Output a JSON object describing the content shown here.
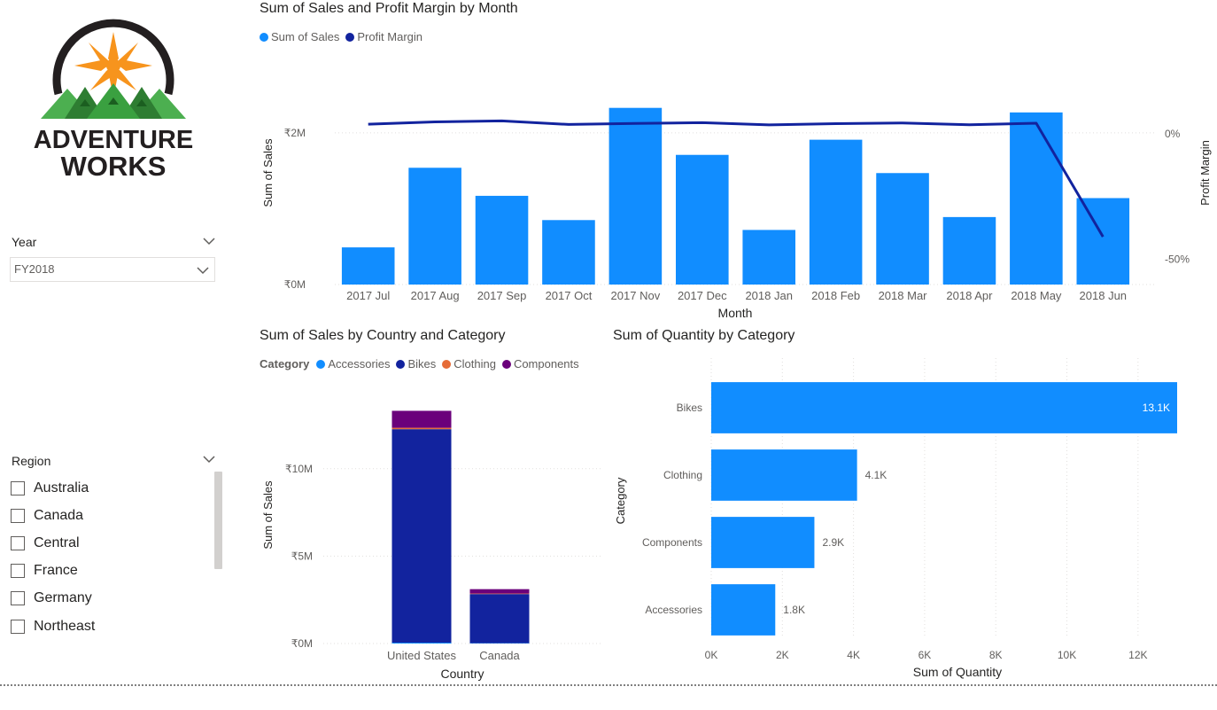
{
  "logo": {
    "line1": "ADVENTURE",
    "line2": "WORKS",
    "brand_colors": {
      "sun": "#f7941d",
      "mountain_dark": "#2e7d32",
      "mountain_light": "#4caf50",
      "arc": "#231f20"
    }
  },
  "year_slicer": {
    "title": "Year",
    "selected": "FY2018",
    "icon": "chevron-down-icon"
  },
  "region_slicer": {
    "title": "Region",
    "icon": "chevron-down-icon",
    "items": [
      {
        "label": "Australia",
        "checked": false
      },
      {
        "label": "Canada",
        "checked": false
      },
      {
        "label": "Central",
        "checked": false
      },
      {
        "label": "France",
        "checked": false
      },
      {
        "label": "Germany",
        "checked": false
      },
      {
        "label": "Northeast",
        "checked": false
      }
    ]
  },
  "colors": {
    "sales": "#118dff",
    "margin": "#12239e",
    "bikes": "#12239e",
    "accessories": "#118dff",
    "clothing": "#e66c37",
    "components": "#6b007b",
    "grid": "#e1dfdd"
  },
  "chart_data": [
    {
      "type": "bar",
      "title": "Sum of Sales and Profit Margin by Month",
      "xlabel": "Month",
      "ylabel": "Sum of Sales",
      "y2label": "Profit Margin",
      "legend": [
        "Sum of Sales",
        "Profit Margin"
      ],
      "categories": [
        "2017 Jul",
        "2017 Aug",
        "2017 Sep",
        "2017 Oct",
        "2017 Nov",
        "2017 Dec",
        "2018 Jan",
        "2018 Feb",
        "2018 Mar",
        "2018 Apr",
        "2018 May",
        "2018 Jun"
      ],
      "series": [
        {
          "name": "Sum of Sales",
          "type": "bar",
          "values": [
            0.49,
            1.54,
            1.17,
            0.85,
            2.33,
            1.71,
            0.72,
            1.91,
            1.47,
            0.89,
            2.27,
            1.14
          ]
        },
        {
          "name": "Profit Margin",
          "type": "line",
          "values": [
            3.8,
            4.7,
            5.1,
            3.7,
            4.1,
            4.4,
            3.5,
            4.0,
            4.3,
            3.6,
            4.2,
            -41.0
          ]
        }
      ],
      "y_ticks": [
        {
          "value": 0,
          "label": "₹0M"
        },
        {
          "value": 2,
          "label": "₹2M"
        }
      ],
      "y2_ticks": [
        {
          "value": 0,
          "label": "0%"
        },
        {
          "value": -50,
          "label": "-50%"
        }
      ],
      "ylim": [
        0,
        2.42
      ],
      "y2lim": [
        -60,
        13
      ],
      "grid": true,
      "legend_position": "top-left"
    },
    {
      "type": "bar",
      "stacked": true,
      "title": "Sum of Sales by Country and Category",
      "legend_title": "Category",
      "xlabel": "Country",
      "ylabel": "Sum of Sales",
      "categories": [
        "United States",
        "Canada"
      ],
      "series": [
        {
          "name": "Accessories",
          "values": [
            0.05,
            0.02
          ]
        },
        {
          "name": "Bikes",
          "values": [
            12.21,
            2.81
          ]
        },
        {
          "name": "Clothing",
          "values": [
            0.08,
            0.03
          ]
        },
        {
          "name": "Components",
          "values": [
            0.97,
            0.25
          ]
        }
      ],
      "y_ticks": [
        {
          "value": 0,
          "label": "₹0M"
        },
        {
          "value": 5,
          "label": "₹5M"
        },
        {
          "value": 10,
          "label": "₹10M"
        }
      ],
      "ylim": [
        0,
        14.5
      ],
      "grid": true,
      "legend_position": "top-left"
    },
    {
      "type": "bar",
      "orientation": "horizontal",
      "title": "Sum of Quantity by Category",
      "xlabel": "Sum of Quantity",
      "ylabel": "Category",
      "categories": [
        "Bikes",
        "Clothing",
        "Components",
        "Accessories"
      ],
      "values": [
        13100,
        4100,
        2900,
        1800
      ],
      "value_labels": [
        "13.1K",
        "4.1K",
        "2.9K",
        "1.8K"
      ],
      "x_ticks": [
        {
          "value": 0,
          "label": "0K"
        },
        {
          "value": 2000,
          "label": "2K"
        },
        {
          "value": 4000,
          "label": "4K"
        },
        {
          "value": 6000,
          "label": "6K"
        },
        {
          "value": 8000,
          "label": "8K"
        },
        {
          "value": 10000,
          "label": "10K"
        },
        {
          "value": 12000,
          "label": "12K"
        }
      ],
      "xlim": [
        0,
        13100
      ],
      "grid": true
    }
  ]
}
